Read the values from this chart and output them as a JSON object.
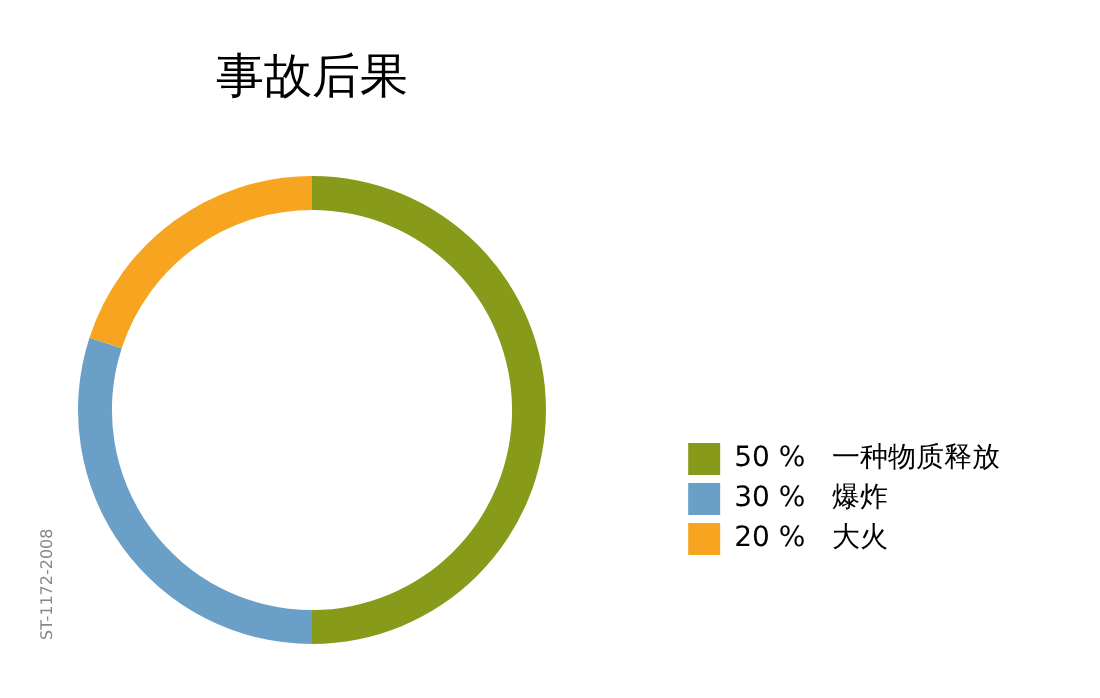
{
  "chart_data": {
    "type": "donut",
    "title": "事故后果",
    "categories": [
      "一种物质释放",
      "爆炸",
      "大火"
    ],
    "values": [
      50,
      30,
      20
    ],
    "value_labels": [
      "50 %",
      "30 %",
      "20 %"
    ],
    "colors": [
      "#879a1a",
      "#6a9fc8",
      "#f7a520"
    ],
    "legend": "right",
    "annotations": [
      "ST-1172-2008"
    ]
  }
}
